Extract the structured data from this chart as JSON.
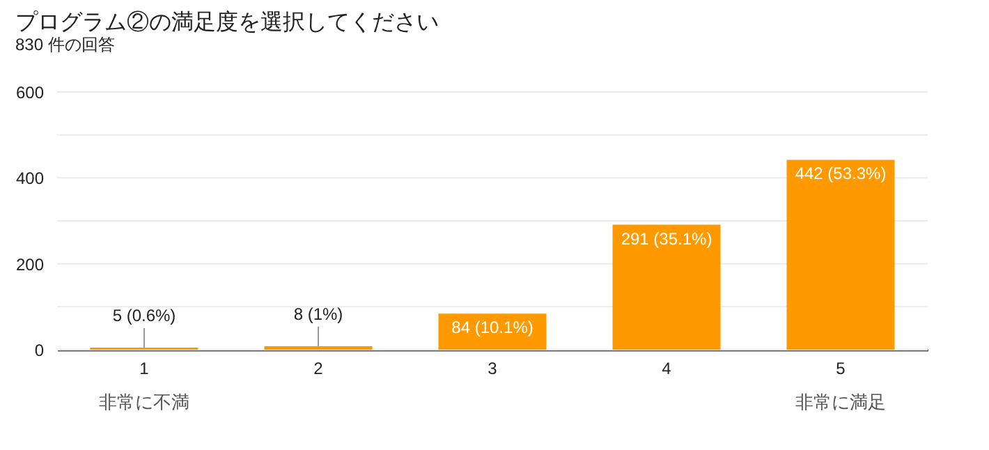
{
  "chart_data": {
    "type": "bar",
    "title": "プログラム②の満足度を選択してください",
    "subtitle": "830 件の回答",
    "categories": [
      "1",
      "2",
      "3",
      "4",
      "5"
    ],
    "values": [
      5,
      8,
      84,
      291,
      442
    ],
    "value_labels": [
      "5 (0.6%)",
      "8 (1%)",
      "84 (10.1%)",
      "291 (35.1%)",
      "442 (53.3%)"
    ],
    "color": "#ff9900",
    "ylim": [
      0,
      600
    ],
    "yticks": [
      0,
      {
        "value": 100,
        "label": null
      },
      200,
      {
        "value": 300,
        "label": null
      },
      400,
      {
        "value": 500,
        "label": null
      },
      600
    ],
    "grid": "y",
    "annotations": [
      "非常に不満",
      "非常に満足"
    ]
  }
}
